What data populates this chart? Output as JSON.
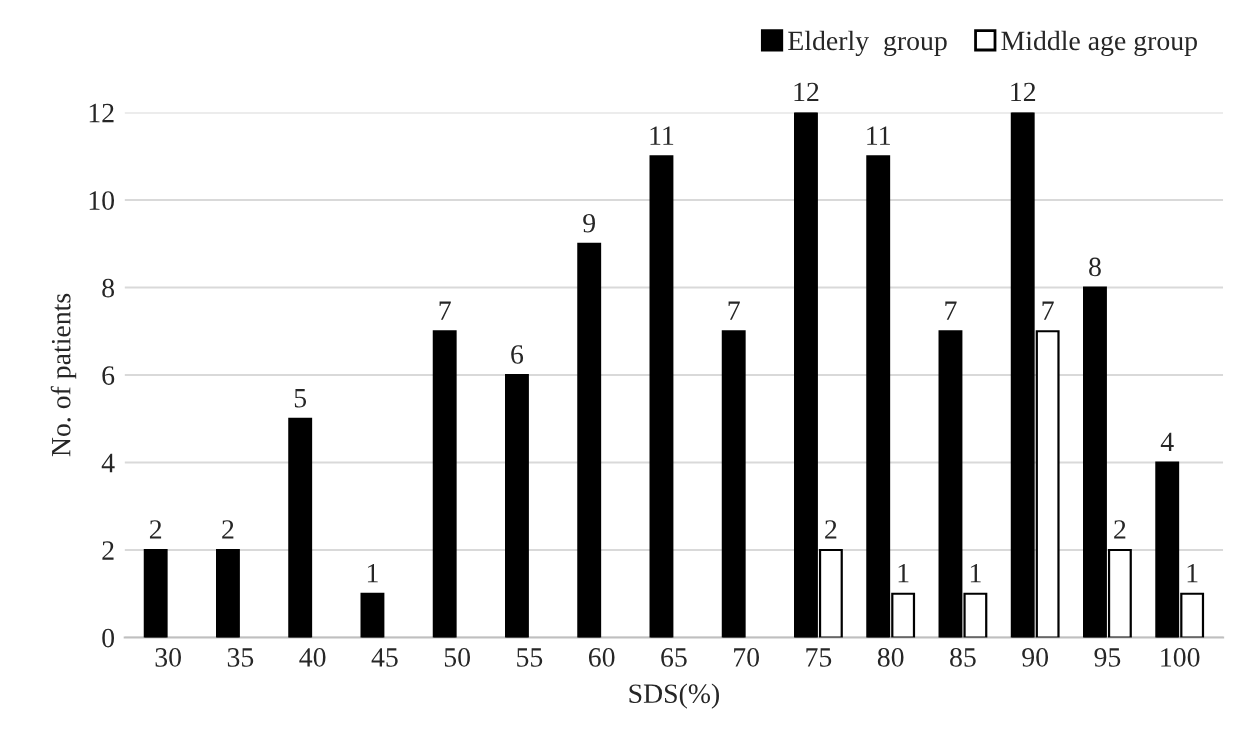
{
  "chart_data": {
    "type": "bar",
    "xlabel": "SDS(%)",
    "ylabel": "No. of patients",
    "categories": [
      "30",
      "35",
      "40",
      "45",
      "50",
      "55",
      "60",
      "65",
      "70",
      "75",
      "80",
      "85",
      "90",
      "95",
      "100"
    ],
    "series": [
      {
        "name": "Elderly  group",
        "color": "#000000",
        "values": [
          2,
          2,
          5,
          1,
          7,
          6,
          9,
          11,
          7,
          12,
          11,
          7,
          12,
          8,
          4
        ],
        "value_labels": [
          "2",
          "2",
          "5",
          "1",
          "7",
          "6",
          "9",
          "11",
          "7",
          "12",
          "11",
          "7",
          "12",
          "8",
          "4"
        ]
      },
      {
        "name": "Middle age group",
        "color": "#ffffff",
        "values": [
          null,
          null,
          null,
          null,
          null,
          null,
          null,
          null,
          null,
          2,
          1,
          1,
          7,
          2,
          1
        ],
        "value_labels": [
          null,
          null,
          null,
          null,
          null,
          null,
          null,
          null,
          null,
          "2",
          "1",
          "1",
          "7",
          "2",
          "1"
        ]
      }
    ],
    "ylim": [
      0,
      12
    ],
    "yticks": [
      0,
      2,
      4,
      6,
      8,
      10,
      12
    ],
    "grid": "y",
    "legend": "top right"
  }
}
